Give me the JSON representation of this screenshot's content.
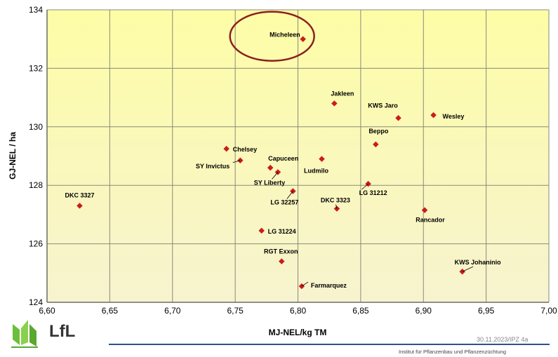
{
  "chart_data": {
    "type": "scatter",
    "xlabel": "MJ-NEL/kg TM",
    "ylabel": "GJ-NEL / ha",
    "xlim": [
      6.6,
      7.0
    ],
    "ylim": [
      124,
      134
    ],
    "x_ticks": [
      "6,60",
      "6,65",
      "6,70",
      "6,75",
      "6,80",
      "6,85",
      "6,90",
      "6,95",
      "7,00"
    ],
    "y_ticks": [
      "124",
      "126",
      "128",
      "130",
      "132",
      "134"
    ],
    "grid": true,
    "points": [
      {
        "label": "Micheleen",
        "x": 6.804,
        "y": 133.0
      },
      {
        "label": "Jakleen",
        "x": 6.829,
        "y": 130.8
      },
      {
        "label": "KWS Jaro",
        "x": 6.88,
        "y": 130.3
      },
      {
        "label": "Wesley",
        "x": 6.908,
        "y": 130.4
      },
      {
        "label": "Beppo",
        "x": 6.862,
        "y": 129.4
      },
      {
        "label": "Chelsey",
        "x": 6.743,
        "y": 129.25
      },
      {
        "label": "SY Invictus",
        "x": 6.754,
        "y": 128.85
      },
      {
        "label": "Capuceen",
        "x": 6.778,
        "y": 128.6
      },
      {
        "label": "SY Liberty",
        "x": 6.784,
        "y": 128.45
      },
      {
        "label": "Ludmilo",
        "x": 6.819,
        "y": 128.9
      },
      {
        "label": "DKC 3327",
        "x": 6.626,
        "y": 127.3
      },
      {
        "label": "LG 31212",
        "x": 6.856,
        "y": 128.05
      },
      {
        "label": "LG 32257",
        "x": 6.796,
        "y": 127.8
      },
      {
        "label": "DKC 3323",
        "x": 6.831,
        "y": 127.2
      },
      {
        "label": "Rancador",
        "x": 6.901,
        "y": 127.15
      },
      {
        "label": "LG 31224",
        "x": 6.771,
        "y": 126.45
      },
      {
        "label": "RGT Exxon",
        "x": 6.787,
        "y": 125.4
      },
      {
        "label": "KWS Johaninio",
        "x": 6.931,
        "y": 125.05
      },
      {
        "label": "Farmarquez",
        "x": 6.803,
        "y": 124.55
      }
    ],
    "highlight": "Micheleen",
    "colors": {
      "background_top": "#fdfda8",
      "background_bottom": "#f8f4cd",
      "point": "#cc1b1b",
      "highlight_ring": "#8b2020",
      "grid": "#8a8a7a"
    }
  },
  "footer": {
    "logo_text": "LfL",
    "date": "30.11.2023/IPZ 4a",
    "institute": "Institut für Pflanzenbau und Pflanzenzüchtung"
  }
}
